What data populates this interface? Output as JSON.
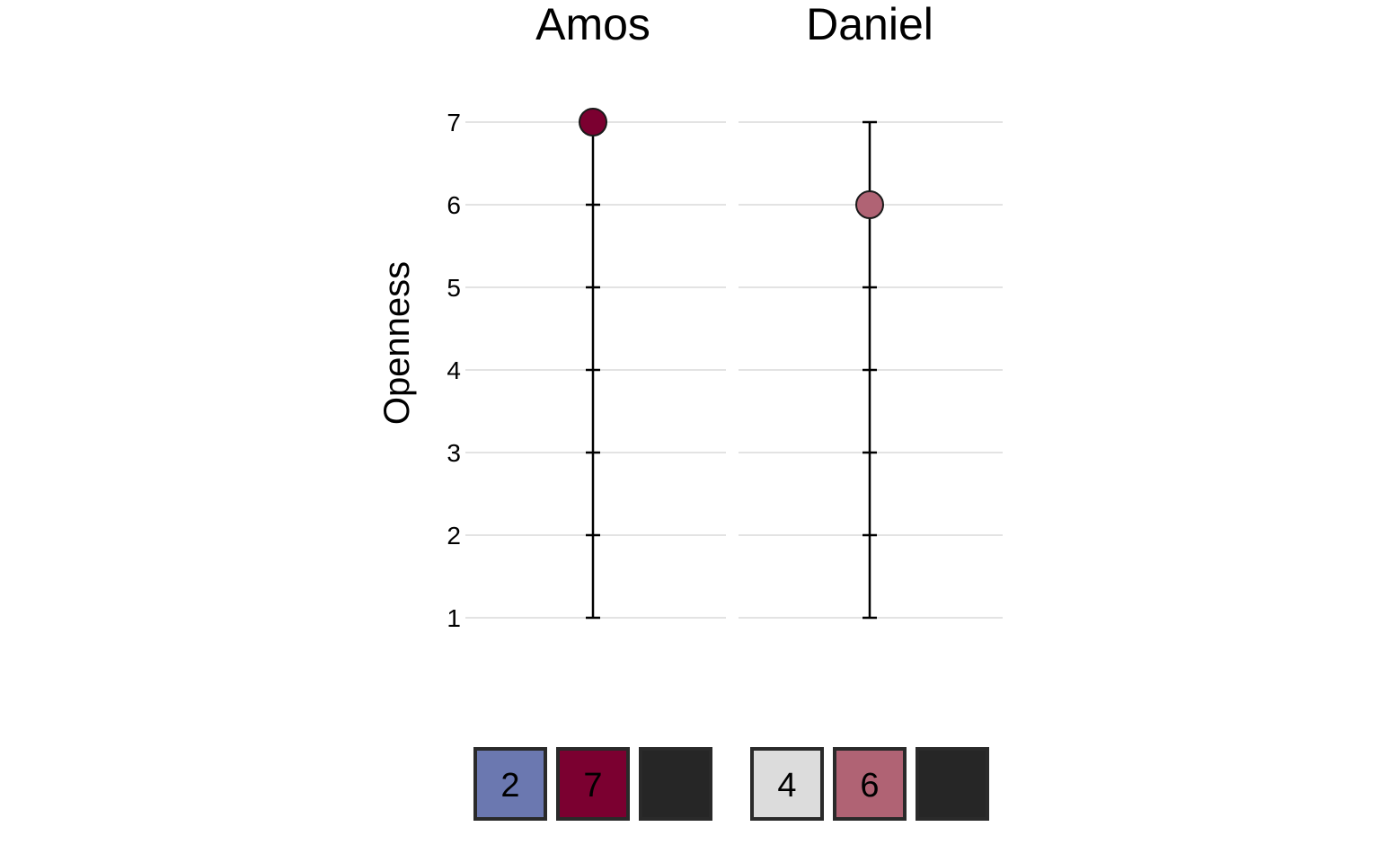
{
  "chart_data": {
    "type": "scatter",
    "ylabel": "Openness",
    "ylim": [
      1,
      7
    ],
    "yticks": [
      1,
      2,
      3,
      4,
      5,
      6,
      7
    ],
    "grid": true,
    "panels": [
      {
        "name": "Amos",
        "value": 7,
        "point_color": "#7b0030",
        "boxes": [
          {
            "label": "2",
            "color": "#6b78b0"
          },
          {
            "label": "7",
            "color": "#7b0030"
          },
          {
            "label": "",
            "color": "#262626"
          }
        ]
      },
      {
        "name": "Daniel",
        "value": 6,
        "point_color": "#b06374",
        "boxes": [
          {
            "label": "4",
            "color": "#dcdcdc"
          },
          {
            "label": "6",
            "color": "#b06374"
          },
          {
            "label": "",
            "color": "#262626"
          }
        ]
      }
    ],
    "colors": {
      "grid": "#e3e3e3",
      "line": "#000000",
      "box_border": "#2a2a2a"
    }
  }
}
